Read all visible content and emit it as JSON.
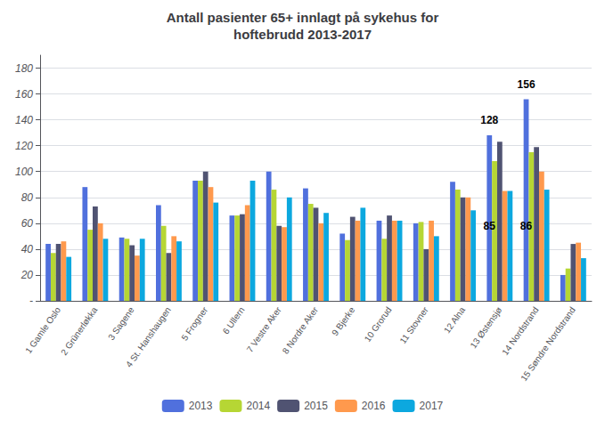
{
  "chart_data": {
    "type": "bar",
    "title": "Antall pasienter 65+ innlagt på sykehus for\nhoftebrudd 2013-2017",
    "categories": [
      "1 Gamle Oslo",
      "2 Grünerløkka",
      "3 Sagene",
      "4 St. Hanshaugen",
      "5 Frogner",
      "6 Ullern",
      "7 Vestre Aker",
      "8 Nordre Aker",
      "9 Bjerke",
      "10 Grorud",
      "11 Stovner",
      "12 Alna",
      "13 Østensjø",
      "14 Nordstrand",
      "15 Søndre Nordstrand"
    ],
    "series": [
      {
        "name": "2013",
        "values": [
          44,
          88,
          49,
          74,
          93,
          66,
          100,
          87,
          52,
          62,
          60,
          92,
          128,
          156,
          20
        ]
      },
      {
        "name": "2014",
        "values": [
          37,
          55,
          48,
          58,
          93,
          66,
          86,
          75,
          47,
          48,
          61,
          86,
          108,
          115,
          25
        ]
      },
      {
        "name": "2015",
        "values": [
          44,
          73,
          43,
          37,
          100,
          67,
          58,
          72,
          65,
          66,
          40,
          80,
          123,
          119,
          44
        ]
      },
      {
        "name": "2016",
        "values": [
          46,
          60,
          35,
          50,
          88,
          74,
          57,
          60,
          62,
          62,
          62,
          80,
          85,
          100,
          45
        ]
      },
      {
        "name": "2017",
        "values": [
          34,
          48,
          48,
          46,
          76,
          93,
          80,
          68,
          72,
          62,
          50,
          70,
          85,
          86,
          33
        ]
      }
    ],
    "ylim": [
      0,
      190
    ],
    "yticks": [
      {
        "value": 0,
        "label": "-"
      },
      20,
      40,
      60,
      80,
      100,
      120,
      140,
      160,
      180
    ],
    "grid": true,
    "legend": "bottom",
    "annotations": [
      {
        "text": "128",
        "x": "13 Østensjø",
        "y": 134
      },
      {
        "text": "85",
        "x": "13 Østensjø",
        "y": 52
      },
      {
        "text": "156",
        "x": "14 Nordstrand",
        "y": 162
      },
      {
        "text": "86",
        "x": "14 Nordstrand",
        "y": 52
      }
    ]
  }
}
